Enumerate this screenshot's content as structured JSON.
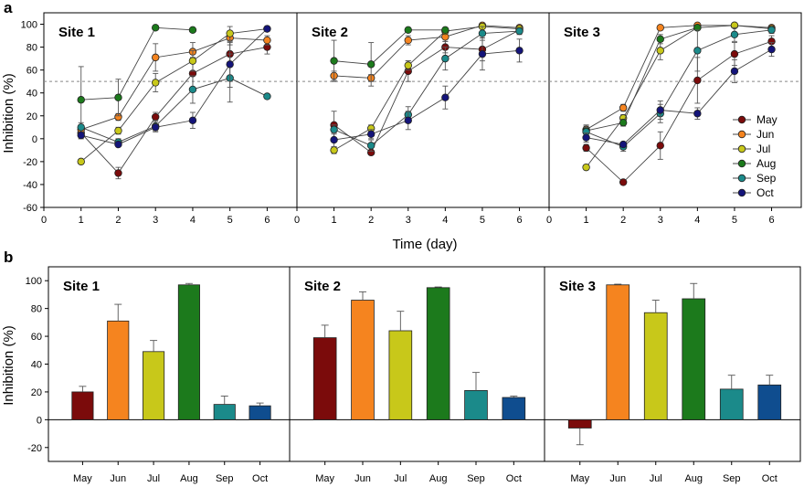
{
  "figure": {
    "panel_a_letter": "a",
    "panel_b_letter": "b",
    "x_axis_label_a": "Time (day)",
    "legend_entries": [
      "May",
      "Jun",
      "Jul",
      "Aug",
      "Sep",
      "Oct"
    ]
  },
  "colors": {
    "May": "#7b0b0b",
    "Jun": "#f5841f",
    "Jul": "#c8c81a",
    "Aug": "#1c7a1c",
    "Sep": "#1b8a8a",
    "Oct": "#14147a",
    "Oct_bar": "#0f4d8f",
    "threshold": "#888888",
    "bar_outline": "#222222"
  },
  "chart_data": [
    {
      "type": "line",
      "id": "a-site1",
      "title": "Site 1",
      "xlabel": "Time (day)",
      "ylabel": "Inhibition (%)",
      "x": [
        1,
        2,
        3,
        4,
        5,
        6
      ],
      "xlim": [
        0,
        6.8
      ],
      "ylim": [
        -60,
        110
      ],
      "xticks": [
        0,
        1,
        2,
        3,
        4,
        5,
        6
      ],
      "yticks": [
        -60,
        -40,
        -20,
        0,
        20,
        40,
        60,
        80,
        100
      ],
      "threshold": 50,
      "series": [
        {
          "name": "May",
          "values": [
            5,
            -30,
            19,
            57,
            74,
            80
          ],
          "errors": [
            5,
            5,
            4,
            14,
            10,
            6
          ]
        },
        {
          "name": "Jun",
          "values": [
            8,
            19,
            71,
            76,
            88,
            86
          ],
          "errors": [
            4,
            3,
            12,
            8,
            6,
            4
          ]
        },
        {
          "name": "Jul",
          "values": [
            -20,
            7,
            49,
            68,
            92,
            96
          ],
          "errors": [
            2,
            3,
            8,
            9,
            6,
            2
          ]
        },
        {
          "name": "Aug",
          "values": [
            34,
            36,
            97,
            95,
            null,
            null
          ],
          "errors": [
            29,
            16,
            1,
            1,
            0,
            0
          ]
        },
        {
          "name": "Sep",
          "values": [
            10,
            -3,
            11,
            43,
            53,
            37
          ],
          "errors": [
            4,
            3,
            5,
            12,
            21,
            2
          ]
        },
        {
          "name": "Oct",
          "values": [
            3,
            -5,
            10,
            16,
            65,
            96
          ],
          "errors": [
            3,
            2,
            3,
            7,
            20,
            2
          ]
        }
      ]
    },
    {
      "type": "line",
      "id": "a-site2",
      "title": "Site 2",
      "x": [
        1,
        2,
        3,
        4,
        5,
        6
      ],
      "xlim": [
        0,
        6.8
      ],
      "ylim": [
        -60,
        110
      ],
      "xticks": [
        0,
        1,
        2,
        3,
        4,
        5,
        6
      ],
      "threshold": 50,
      "series": [
        {
          "name": "May",
          "values": [
            12,
            -12,
            59,
            80,
            78,
            95
          ],
          "errors": [
            12,
            2,
            9,
            5,
            10,
            3
          ]
        },
        {
          "name": "Jun",
          "values": [
            55,
            53,
            86,
            89,
            99,
            97
          ],
          "errors": [
            4,
            3,
            4,
            4,
            1,
            1
          ]
        },
        {
          "name": "Jul",
          "values": [
            -10,
            9,
            64,
            94,
            98,
            96
          ],
          "errors": [
            3,
            3,
            4,
            2,
            1,
            1
          ]
        },
        {
          "name": "Aug",
          "values": [
            68,
            65,
            95,
            95,
            null,
            null
          ],
          "errors": [
            18,
            19,
            1,
            1,
            0,
            0
          ]
        },
        {
          "name": "Sep",
          "values": [
            8,
            -6,
            21,
            70,
            92,
            94
          ],
          "errors": [
            4,
            5,
            7,
            10,
            6,
            3
          ]
        },
        {
          "name": "Oct",
          "values": [
            -1,
            4,
            16,
            36,
            74,
            77
          ],
          "errors": [
            6,
            4,
            8,
            10,
            14,
            10
          ]
        }
      ]
    },
    {
      "type": "line",
      "id": "a-site3",
      "title": "Site 3",
      "x": [
        1,
        2,
        3,
        4,
        5,
        6
      ],
      "xlim": [
        0,
        6.8
      ],
      "ylim": [
        -60,
        110
      ],
      "xticks": [
        0,
        1,
        2,
        3,
        4,
        5,
        6
      ],
      "threshold": 50,
      "series": [
        {
          "name": "May",
          "values": [
            -8,
            -38,
            -6,
            51,
            74,
            85
          ],
          "errors": [
            3,
            2,
            12,
            20,
            10,
            5
          ]
        },
        {
          "name": "Jun",
          "values": [
            8,
            27,
            97,
            99,
            99,
            97
          ],
          "errors": [
            3,
            3,
            1,
            1,
            1,
            1
          ]
        },
        {
          "name": "Jul",
          "values": [
            -25,
            18,
            77,
            97,
            99,
            96
          ],
          "errors": [
            2,
            3,
            8,
            2,
            1,
            1
          ]
        },
        {
          "name": "Aug",
          "values": [
            7,
            14,
            87,
            97,
            null,
            null
          ],
          "errors": [
            5,
            3,
            4,
            2,
            0,
            0
          ]
        },
        {
          "name": "Sep",
          "values": [
            6,
            -7,
            22,
            77,
            91,
            95
          ],
          "errors": [
            4,
            4,
            8,
            18,
            6,
            3
          ]
        },
        {
          "name": "Oct",
          "values": [
            1,
            -5,
            25,
            22,
            59,
            78
          ],
          "errors": [
            4,
            2,
            8,
            5,
            10,
            6
          ]
        }
      ]
    },
    {
      "type": "bar",
      "id": "b-site1",
      "title": "Site 1",
      "ylabel": "Inhibition (%)",
      "categories": [
        "May",
        "Jun",
        "Jul",
        "Aug",
        "Sep",
        "Oct"
      ],
      "values": [
        20,
        71,
        49,
        97,
        11,
        10
      ],
      "errors": [
        4,
        12,
        8,
        1,
        6,
        2
      ],
      "ylim": [
        -30,
        110
      ],
      "yticks": [
        -20,
        0,
        20,
        40,
        60,
        80,
        100
      ]
    },
    {
      "type": "bar",
      "id": "b-site2",
      "title": "Site 2",
      "categories": [
        "May",
        "Jun",
        "Jul",
        "Aug",
        "Sep",
        "Oct"
      ],
      "values": [
        59,
        86,
        64,
        95,
        21,
        16
      ],
      "errors": [
        9,
        6,
        14,
        0.5,
        13,
        1
      ],
      "ylim": [
        -30,
        110
      ]
    },
    {
      "type": "bar",
      "id": "b-site3",
      "title": "Site 3",
      "categories": [
        "May",
        "Jun",
        "Jul",
        "Aug",
        "Sep",
        "Oct"
      ],
      "values": [
        -6,
        97,
        77,
        87,
        22,
        25
      ],
      "errors": [
        12,
        0.5,
        9,
        11,
        10,
        7
      ],
      "ylim": [
        -30,
        110
      ]
    }
  ]
}
